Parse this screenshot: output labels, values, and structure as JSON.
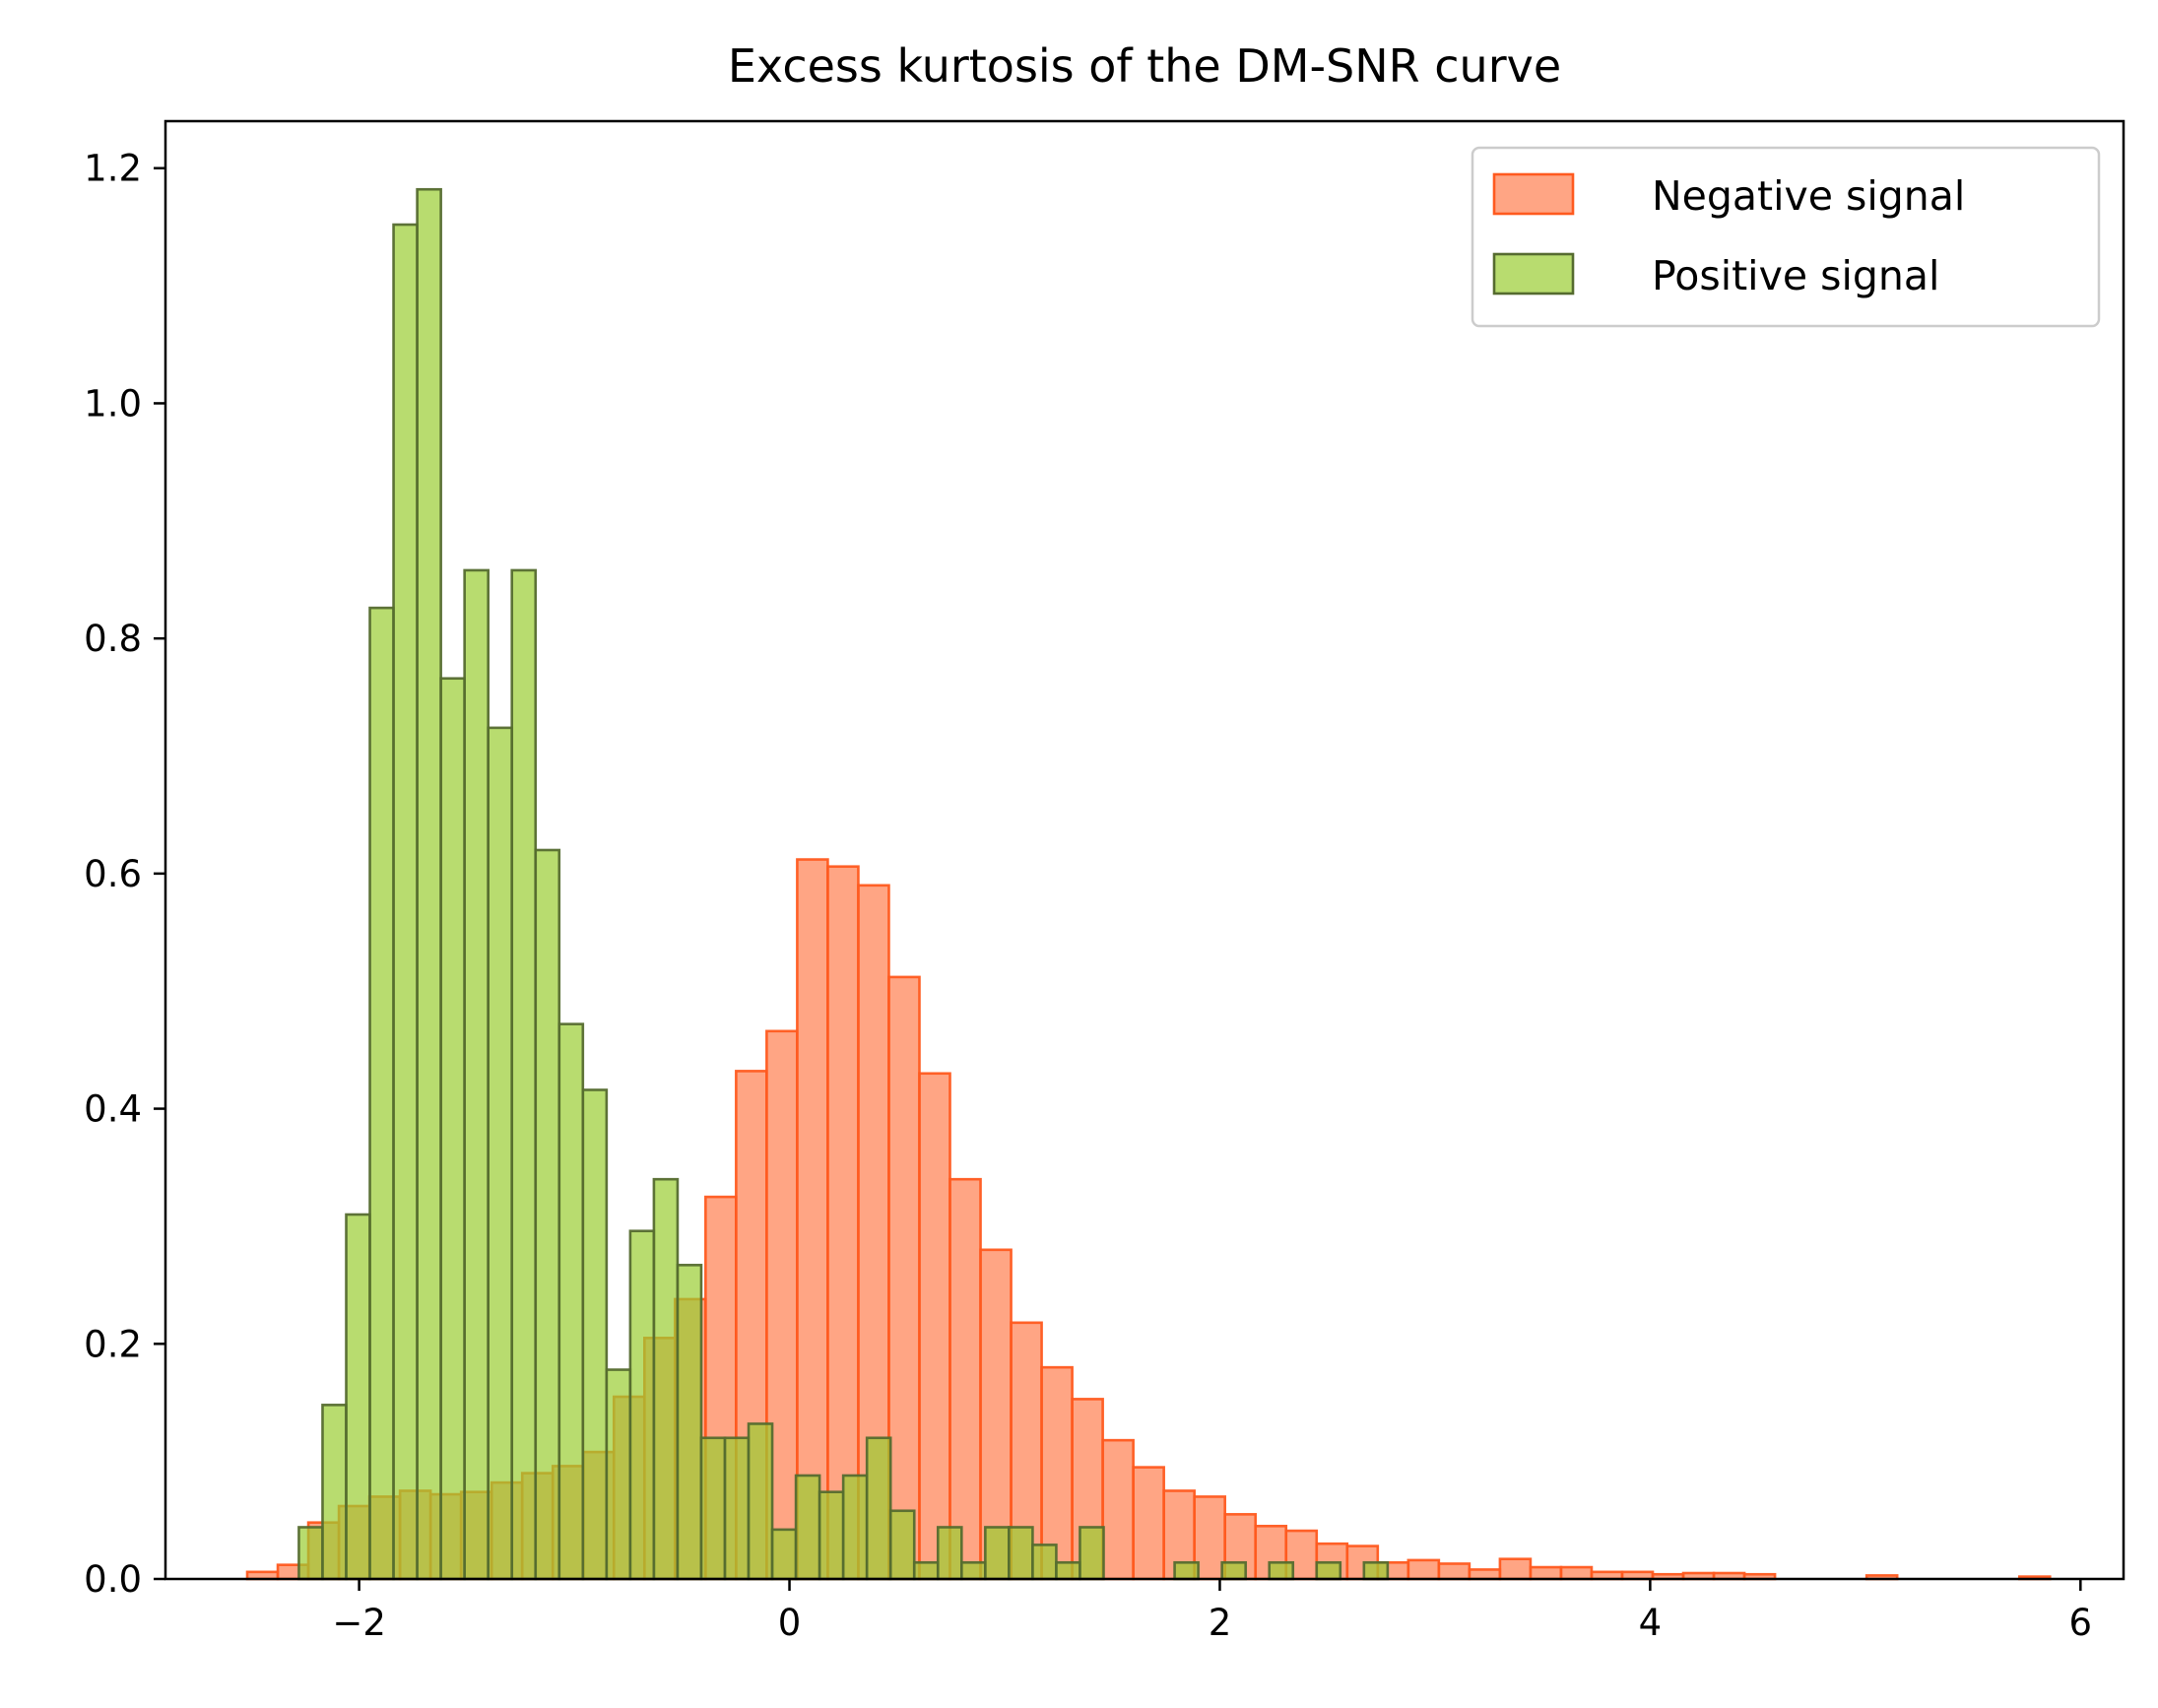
{
  "chart_data": {
    "type": "bar",
    "chart_type_detail": "overlapping histogram (density)",
    "title": "Excess kurtosis of the DM-SNR curve",
    "xlabel": "",
    "ylabel": "",
    "xlim": [
      -2.9,
      6.2
    ],
    "ylim": [
      0,
      1.24
    ],
    "xticks": [
      -2,
      0,
      2,
      4,
      6
    ],
    "xtick_labels": [
      "−2",
      "0",
      "2",
      "4",
      "6"
    ],
    "yticks": [
      0.0,
      0.2,
      0.4,
      0.6,
      0.8,
      1.0,
      1.2
    ],
    "ytick_labels": [
      "0.0",
      "0.2",
      "0.4",
      "0.6",
      "0.8",
      "1.0",
      "1.2"
    ],
    "grid": false,
    "legend_position": "top-right",
    "series": [
      {
        "name": "Negative signal",
        "fill_color": "#ff7f50",
        "edge_color": "#ff5a1f",
        "opacity": 0.7,
        "bin_edges": [
          -2.52,
          -2.378,
          -2.236,
          -2.094,
          -1.952,
          -1.81,
          -1.668,
          -1.526,
          -1.384,
          -1.242,
          -1.1,
          -0.958,
          -0.816,
          -0.674,
          -0.532,
          -0.39,
          -0.248,
          -0.106,
          0.036,
          0.178,
          0.32,
          0.462,
          0.604,
          0.746,
          0.888,
          1.03,
          1.172,
          1.314,
          1.456,
          1.598,
          1.74,
          1.882,
          2.024,
          2.166,
          2.308,
          2.45,
          2.592,
          2.734,
          2.876,
          3.018,
          3.16,
          3.302,
          3.444,
          3.586,
          3.728,
          3.87,
          4.012,
          4.154,
          4.296,
          4.438,
          4.58,
          4.722,
          4.864,
          5.006,
          5.148,
          5.29,
          5.432,
          5.574,
          5.716,
          5.858
        ],
        "values": [
          0.006,
          0.012,
          0.048,
          0.062,
          0.07,
          0.075,
          0.072,
          0.074,
          0.082,
          0.09,
          0.096,
          0.108,
          0.155,
          0.205,
          0.238,
          0.325,
          0.432,
          0.466,
          0.612,
          0.606,
          0.59,
          0.512,
          0.43,
          0.34,
          0.28,
          0.218,
          0.18,
          0.153,
          0.118,
          0.095,
          0.075,
          0.07,
          0.055,
          0.045,
          0.041,
          0.03,
          0.028,
          0.014,
          0.016,
          0.013,
          0.008,
          0.017,
          0.01,
          0.01,
          0.006,
          0.006,
          0.004,
          0.005,
          0.005,
          0.004,
          0,
          0,
          0,
          0.003,
          0,
          0,
          0,
          0,
          0.002
        ]
      },
      {
        "name": "Positive signal",
        "fill_color": "#9acd32",
        "edge_color": "#556b2f",
        "opacity": 0.7,
        "bin_edges": [
          -2.28,
          -2.17,
          -2.06,
          -1.95,
          -1.84,
          -1.73,
          -1.62,
          -1.51,
          -1.4,
          -1.29,
          -1.18,
          -1.07,
          -0.96,
          -0.85,
          -0.74,
          -0.63,
          -0.52,
          -0.41,
          -0.3,
          -0.19,
          -0.08,
          0.03,
          0.14,
          0.25,
          0.36,
          0.47,
          0.58,
          0.69,
          0.8,
          0.91,
          1.02,
          1.13,
          1.24,
          1.35,
          1.46,
          1.57,
          1.68,
          1.79,
          1.9,
          2.01,
          2.12,
          2.23,
          2.34,
          2.45,
          2.56,
          2.67,
          2.78
        ],
        "values": [
          0.044,
          0.148,
          0.31,
          0.826,
          1.152,
          1.182,
          0.766,
          0.858,
          0.724,
          0.858,
          0.62,
          0.472,
          0.416,
          0.178,
          0.296,
          0.34,
          0.267,
          0.12,
          0.12,
          0.132,
          0.042,
          0.088,
          0.074,
          0.088,
          0.12,
          0.058,
          0.014,
          0.044,
          0.014,
          0.044,
          0.044,
          0.029,
          0.014,
          0.044,
          0,
          0,
          0,
          0.014,
          0,
          0.014,
          0,
          0.014,
          0,
          0.014,
          0,
          0.014
        ]
      }
    ]
  }
}
